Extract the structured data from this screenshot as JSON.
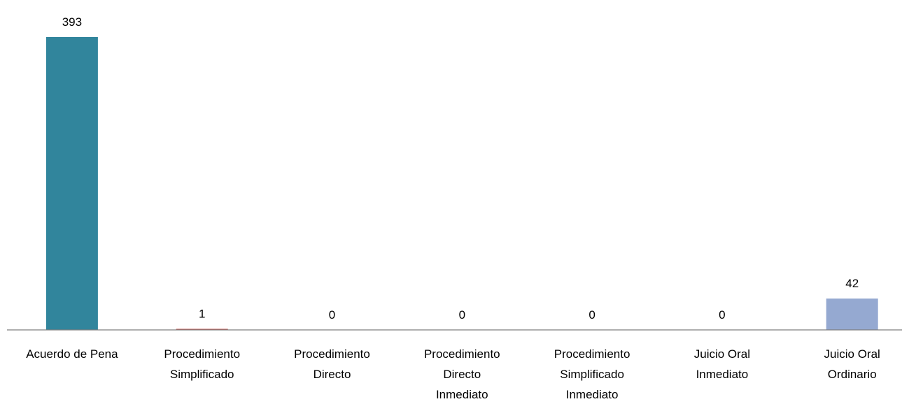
{
  "chart_data": {
    "type": "bar",
    "categories": [
      "Acuerdo de Pena",
      "Procedimiento Simplificado",
      "Procedimiento Directo",
      "Procedimiento Directo Inmediato",
      "Procedimiento Simplificado Inmediato",
      "Juicio Oral Inmediato",
      "Juicio Oral Ordinario"
    ],
    "category_lines": [
      [
        "Acuerdo de Pena"
      ],
      [
        "Procedimiento",
        "Simplificado"
      ],
      [
        "Procedimiento",
        "Directo"
      ],
      [
        "Procedimiento",
        "Directo",
        "Inmediato"
      ],
      [
        "Procedimiento",
        "Simplificado",
        "Inmediato"
      ],
      [
        "Juicio Oral",
        "Inmediato"
      ],
      [
        "Juicio Oral",
        "Ordinario"
      ]
    ],
    "values": [
      393,
      1,
      0,
      0,
      0,
      0,
      42
    ],
    "data_labels": [
      "393",
      "1",
      "0",
      "0",
      "0",
      "0",
      "42"
    ],
    "colors": [
      "#31859C",
      "#C0504D",
      "#9BBB59",
      "#8064A2",
      "#4BACC6",
      "#F79646",
      "#95A9D1"
    ],
    "axis_color": "#7F7F7F",
    "title": "",
    "xlabel": "",
    "ylabel": "",
    "ylim": [
      0,
      393
    ],
    "grid": false,
    "legend": "none"
  }
}
